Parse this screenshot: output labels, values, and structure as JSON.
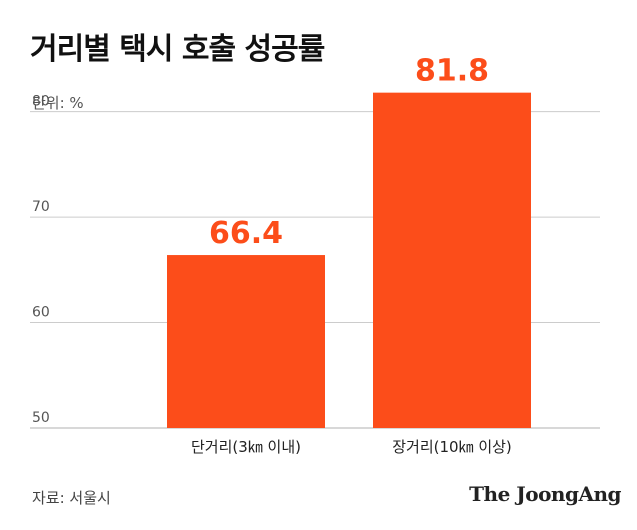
{
  "header": {
    "title": "거리별 택시 호출 성공률",
    "unit": "단위: %"
  },
  "footer": {
    "source": "자료: 서울시",
    "logo": "The JoongAng"
  },
  "colors": {
    "bar": "#fc4d1a",
    "value_label": "#fc4d1a",
    "grid": "#cccccc",
    "axis_text": "#444444"
  },
  "chart_data": {
    "type": "bar",
    "title": "거리별 택시 호출 성공률",
    "xlabel": "",
    "ylabel": "",
    "ylim": [
      50,
      83
    ],
    "yticks": [
      50,
      60,
      70,
      80
    ],
    "grid": true,
    "categories": [
      "단거리(3㎞ 이내)",
      "장거리(10㎞ 이상)"
    ],
    "values": [
      66.4,
      81.8
    ],
    "value_labels": [
      "66.4",
      "81.8"
    ]
  }
}
